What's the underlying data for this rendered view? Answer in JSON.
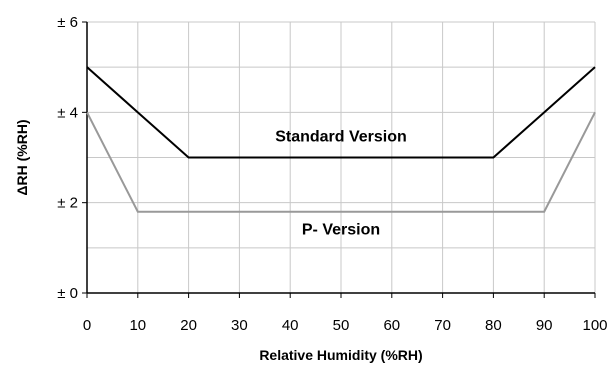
{
  "chart_data": {
    "type": "line",
    "title": "",
    "xlabel": "Relative Humidity (%RH)",
    "ylabel": "ΔRH (%RH)",
    "xlim": [
      0,
      100
    ],
    "ylim": [
      0,
      6
    ],
    "x_ticks": [
      0,
      10,
      20,
      30,
      40,
      50,
      60,
      70,
      80,
      90,
      100
    ],
    "x_tick_labels": [
      "0",
      "10",
      "20",
      "30",
      "40",
      "50",
      "60",
      "70",
      "80",
      "90",
      "100"
    ],
    "y_ticks": [
      0,
      2,
      4,
      6
    ],
    "y_tick_labels": [
      "± 0",
      "± 2",
      "± 4",
      "± 6"
    ],
    "grid": true,
    "series": [
      {
        "name": "Standard Version",
        "color": "#000000",
        "x": [
          0,
          10,
          20,
          80,
          90,
          100
        ],
        "y": [
          5,
          4,
          3,
          3,
          4,
          5
        ]
      },
      {
        "name": "P- Version",
        "color": "#999999",
        "x": [
          0,
          10,
          90,
          100
        ],
        "y": [
          4,
          1.8,
          1.8,
          4
        ]
      }
    ],
    "annotations": [
      {
        "text": "Standard Version",
        "x": 50,
        "y": 3.35
      },
      {
        "text": "P- Version",
        "x": 50,
        "y": 1.3
      }
    ]
  },
  "colors": {
    "grid": "#c8c8c8",
    "axis": "#000000",
    "background": "#ffffff"
  }
}
